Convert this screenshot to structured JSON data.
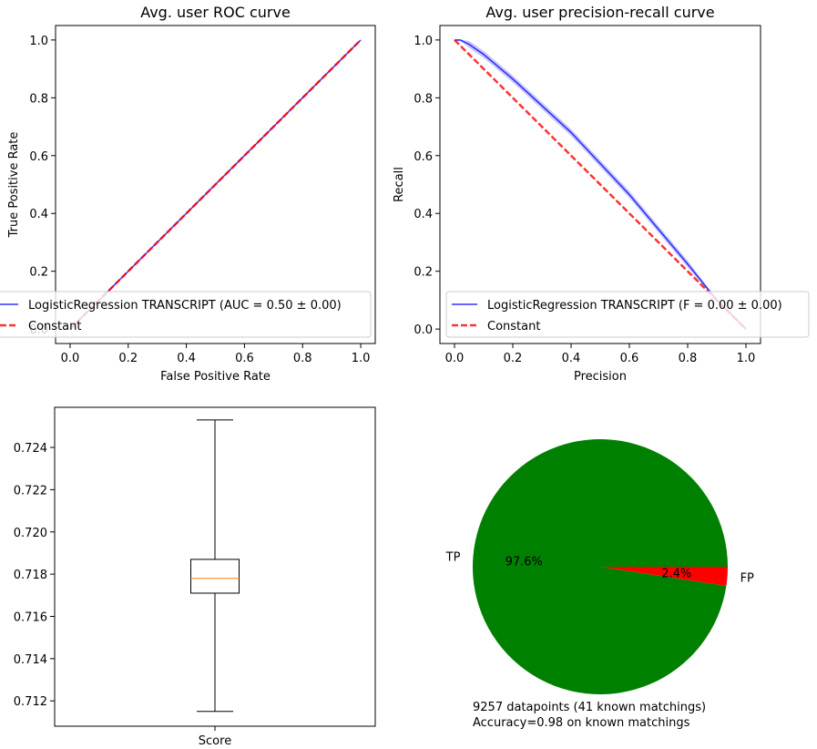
{
  "chart_data": [
    {
      "type": "line",
      "title": "Avg. user ROC curve",
      "xlabel": "False Positive Rate",
      "ylabel": "True Positive Rate",
      "xlim": [
        -0.05,
        1.05
      ],
      "ylim": [
        -0.05,
        1.05
      ],
      "x_ticks": [
        "0.0",
        "0.2",
        "0.4",
        "0.6",
        "0.8",
        "1.0"
      ],
      "y_ticks": [
        "0.0",
        "0.2",
        "0.4",
        "0.6",
        "0.8",
        "1.0"
      ],
      "grid": false,
      "legend_position": "lower-right",
      "series": [
        {
          "name": "LogisticRegression TRANSCRIPT (AUC = 0.50 ± 0.00)",
          "color": "#0000ff",
          "style": "solid",
          "x": [
            0,
            1
          ],
          "y": [
            0,
            1
          ]
        },
        {
          "name": "Constant",
          "color": "#ff0000",
          "style": "dashed",
          "x": [
            0,
            1
          ],
          "y": [
            0,
            1
          ]
        }
      ]
    },
    {
      "type": "line",
      "title": "Avg. user precision-recall curve",
      "xlabel": "Precision",
      "ylabel": "Recall",
      "xlim": [
        -0.05,
        1.05
      ],
      "ylim": [
        -0.05,
        1.05
      ],
      "x_ticks": [
        "0.0",
        "0.2",
        "0.4",
        "0.6",
        "0.8",
        "1.0"
      ],
      "y_ticks": [
        "0.0",
        "0.2",
        "0.4",
        "0.6",
        "0.8",
        "1.0"
      ],
      "grid": false,
      "legend_position": "lower-right",
      "series": [
        {
          "name": "LogisticRegression TRANSCRIPT (F = 0.00 ± 0.00)",
          "color": "#0000ff",
          "style": "solid",
          "x": [
            0,
            0.02,
            0.05,
            0.1,
            0.2,
            0.4,
            0.6,
            0.8,
            0.9,
            1.0
          ],
          "y": [
            1.0,
            1.0,
            0.985,
            0.95,
            0.865,
            0.68,
            0.465,
            0.225,
            0.1,
            0.0
          ]
        },
        {
          "name": "Constant",
          "color": "#ff0000",
          "style": "dashed",
          "x": [
            0,
            1
          ],
          "y": [
            1,
            0
          ]
        }
      ]
    },
    {
      "type": "box",
      "xlabel": "Score",
      "ylim": [
        0.7108,
        0.7259
      ],
      "y_ticks": [
        "0.712",
        "0.714",
        "0.716",
        "0.718",
        "0.720",
        "0.722",
        "0.724"
      ],
      "box": {
        "whisker_low": 0.7115,
        "q1": 0.7171,
        "median": 0.7178,
        "q3": 0.7187,
        "whisker_high": 0.7253
      },
      "median_color": "#ff7f0e"
    },
    {
      "type": "pie",
      "labels": [
        "TP",
        "FP"
      ],
      "values": [
        97.6,
        2.4
      ],
      "percent_labels": [
        "97.6%",
        "2.4%"
      ],
      "colors": [
        "#008000",
        "#ff0000"
      ],
      "annotation": [
        "9257 datapoints (41 known matchings)",
        "Accuracy=0.98 on known matchings"
      ]
    }
  ]
}
